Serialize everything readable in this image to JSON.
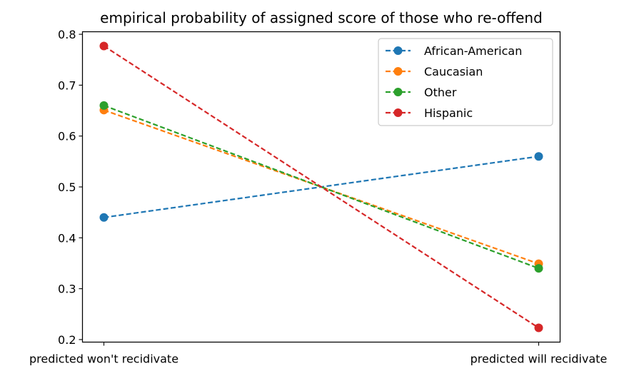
{
  "chart_data": {
    "type": "line",
    "title": "empirical probability of assigned score of those who re-offend",
    "xlabel": "",
    "ylabel": "",
    "categories": [
      "predicted won't recidivate",
      "predicted will recidivate"
    ],
    "ylim": [
      0.195,
      0.805
    ],
    "yticks": [
      0.2,
      0.3,
      0.4,
      0.5,
      0.6,
      0.7,
      0.8
    ],
    "ytick_labels": [
      "0.2",
      "0.3",
      "0.4",
      "0.5",
      "0.6",
      "0.7",
      "0.8"
    ],
    "grid": false,
    "legend_position": "top-right",
    "line_style": "dashed",
    "marker": "circle",
    "series": [
      {
        "name": "African-American",
        "values": [
          0.44,
          0.56
        ],
        "color": "#1f77b4"
      },
      {
        "name": "Caucasian",
        "values": [
          0.651,
          0.349
        ],
        "color": "#ff7f0e"
      },
      {
        "name": "Other",
        "values": [
          0.66,
          0.34
        ],
        "color": "#2ca02c"
      },
      {
        "name": "Hispanic",
        "values": [
          0.777,
          0.223
        ],
        "color": "#d62728"
      }
    ]
  }
}
